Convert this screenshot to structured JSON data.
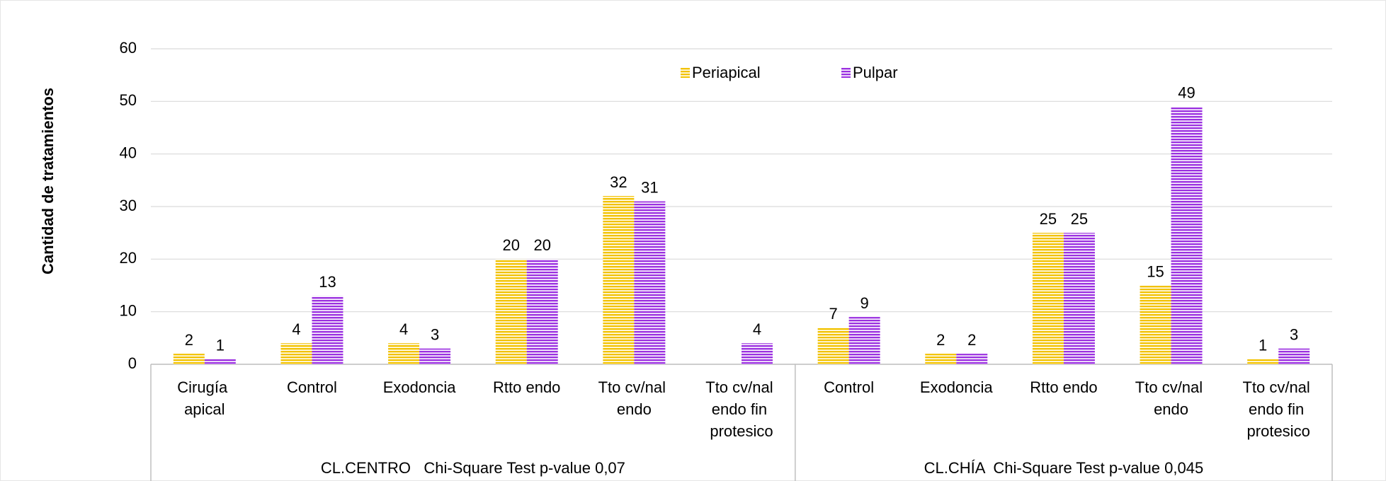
{
  "chart_data": {
    "type": "bar",
    "y_label": "Cantidad de tratamientos",
    "groups": [
      {
        "name": "CL.CENTRO   Chi-Square Test p-value 0,07",
        "categories": [
          "Cirugía apical",
          "Control",
          "Exodoncia",
          "Rtto endo",
          "Tto cv/nal endo",
          "Tto cv/nal endo fin protesico"
        ]
      },
      {
        "name": "CL.CHÍA  Chi-Square Test p-value 0,045",
        "categories": [
          "Control",
          "Exodoncia",
          "Rtto endo",
          "Tto cv/nal endo",
          "Tto cv/nal endo fin protesico"
        ]
      }
    ],
    "series": [
      {
        "name": "Periapical",
        "color": "#f2c200",
        "values": [
          2,
          4,
          4,
          20,
          32,
          null,
          7,
          2,
          25,
          15,
          1
        ]
      },
      {
        "name": "Pulpar",
        "color": "#9b30e0",
        "values": [
          1,
          13,
          3,
          20,
          31,
          4,
          9,
          2,
          25,
          49,
          3
        ]
      }
    ],
    "ylim": [
      0,
      60
    ],
    "yticks": [
      0,
      10,
      20,
      30,
      40,
      50,
      60
    ],
    "grid": true,
    "legend": "top"
  }
}
